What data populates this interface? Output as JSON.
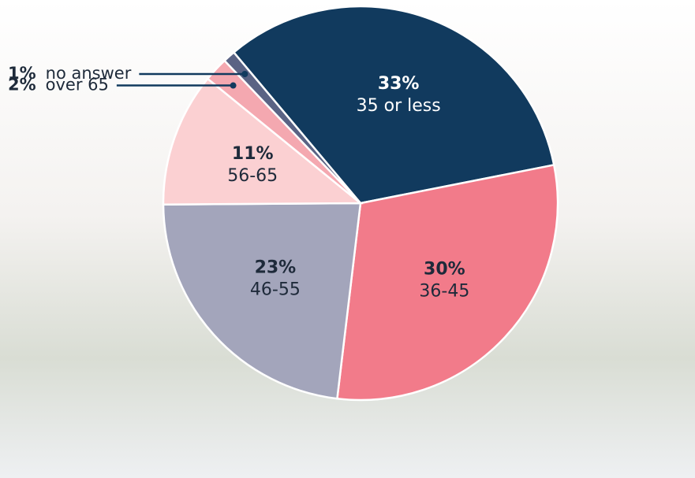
{
  "chart_data": {
    "type": "pie",
    "categories": [
      "35 or less",
      "36-45",
      "46-55",
      "56-65",
      "over 65",
      "no answer"
    ],
    "values": [
      33,
      30,
      23,
      11,
      2,
      1
    ],
    "value_labels": [
      "33%",
      "30%",
      "23%",
      "11%",
      "2%",
      "1%"
    ],
    "colors": [
      "#113a5e",
      "#f27b8a",
      "#a3a5bb",
      "#fbd0d2",
      "#f4a8b0",
      "#5a6384"
    ]
  }
}
